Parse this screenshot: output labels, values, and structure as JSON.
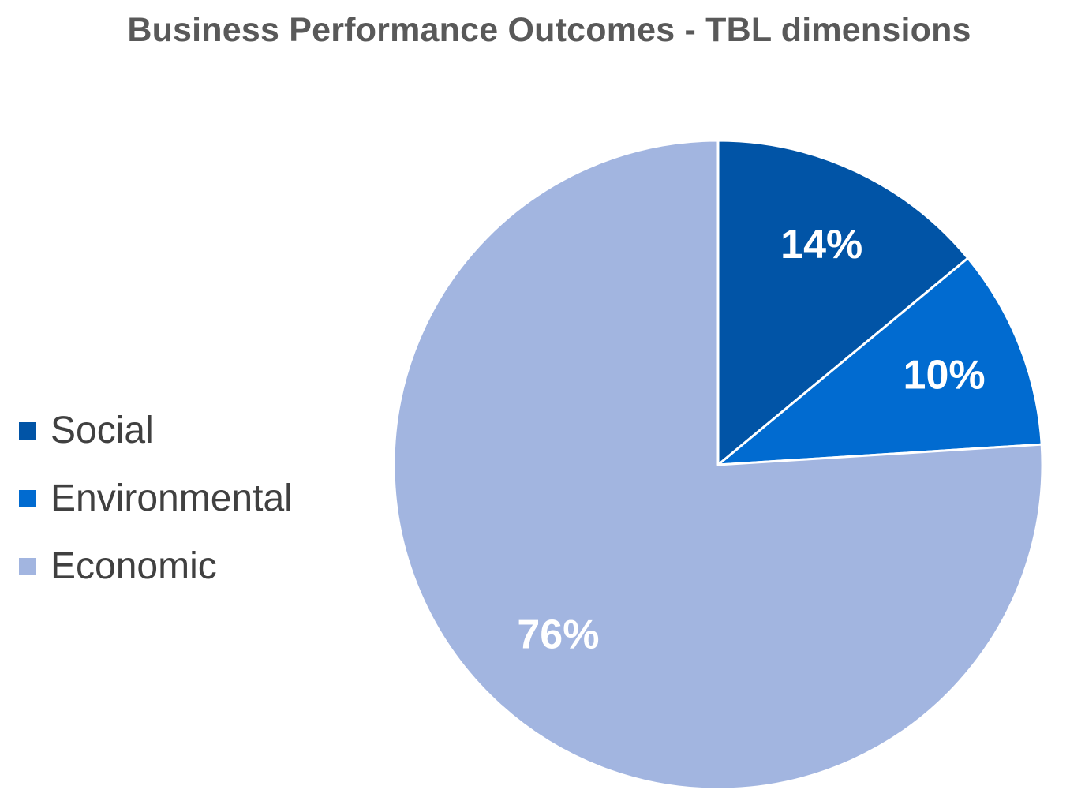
{
  "chart_data": {
    "type": "pie",
    "title": "Business Performance Outcomes - TBL dimensions",
    "legend_position": "left",
    "slices": [
      {
        "name": "Social",
        "value": 14,
        "label": "14%",
        "color": "#0154a6"
      },
      {
        "name": "Environmental",
        "value": 10,
        "label": "10%",
        "color": "#016bd0"
      },
      {
        "name": "Economic",
        "value": 76,
        "label": "76%",
        "color": "#a2b5e0"
      }
    ]
  }
}
